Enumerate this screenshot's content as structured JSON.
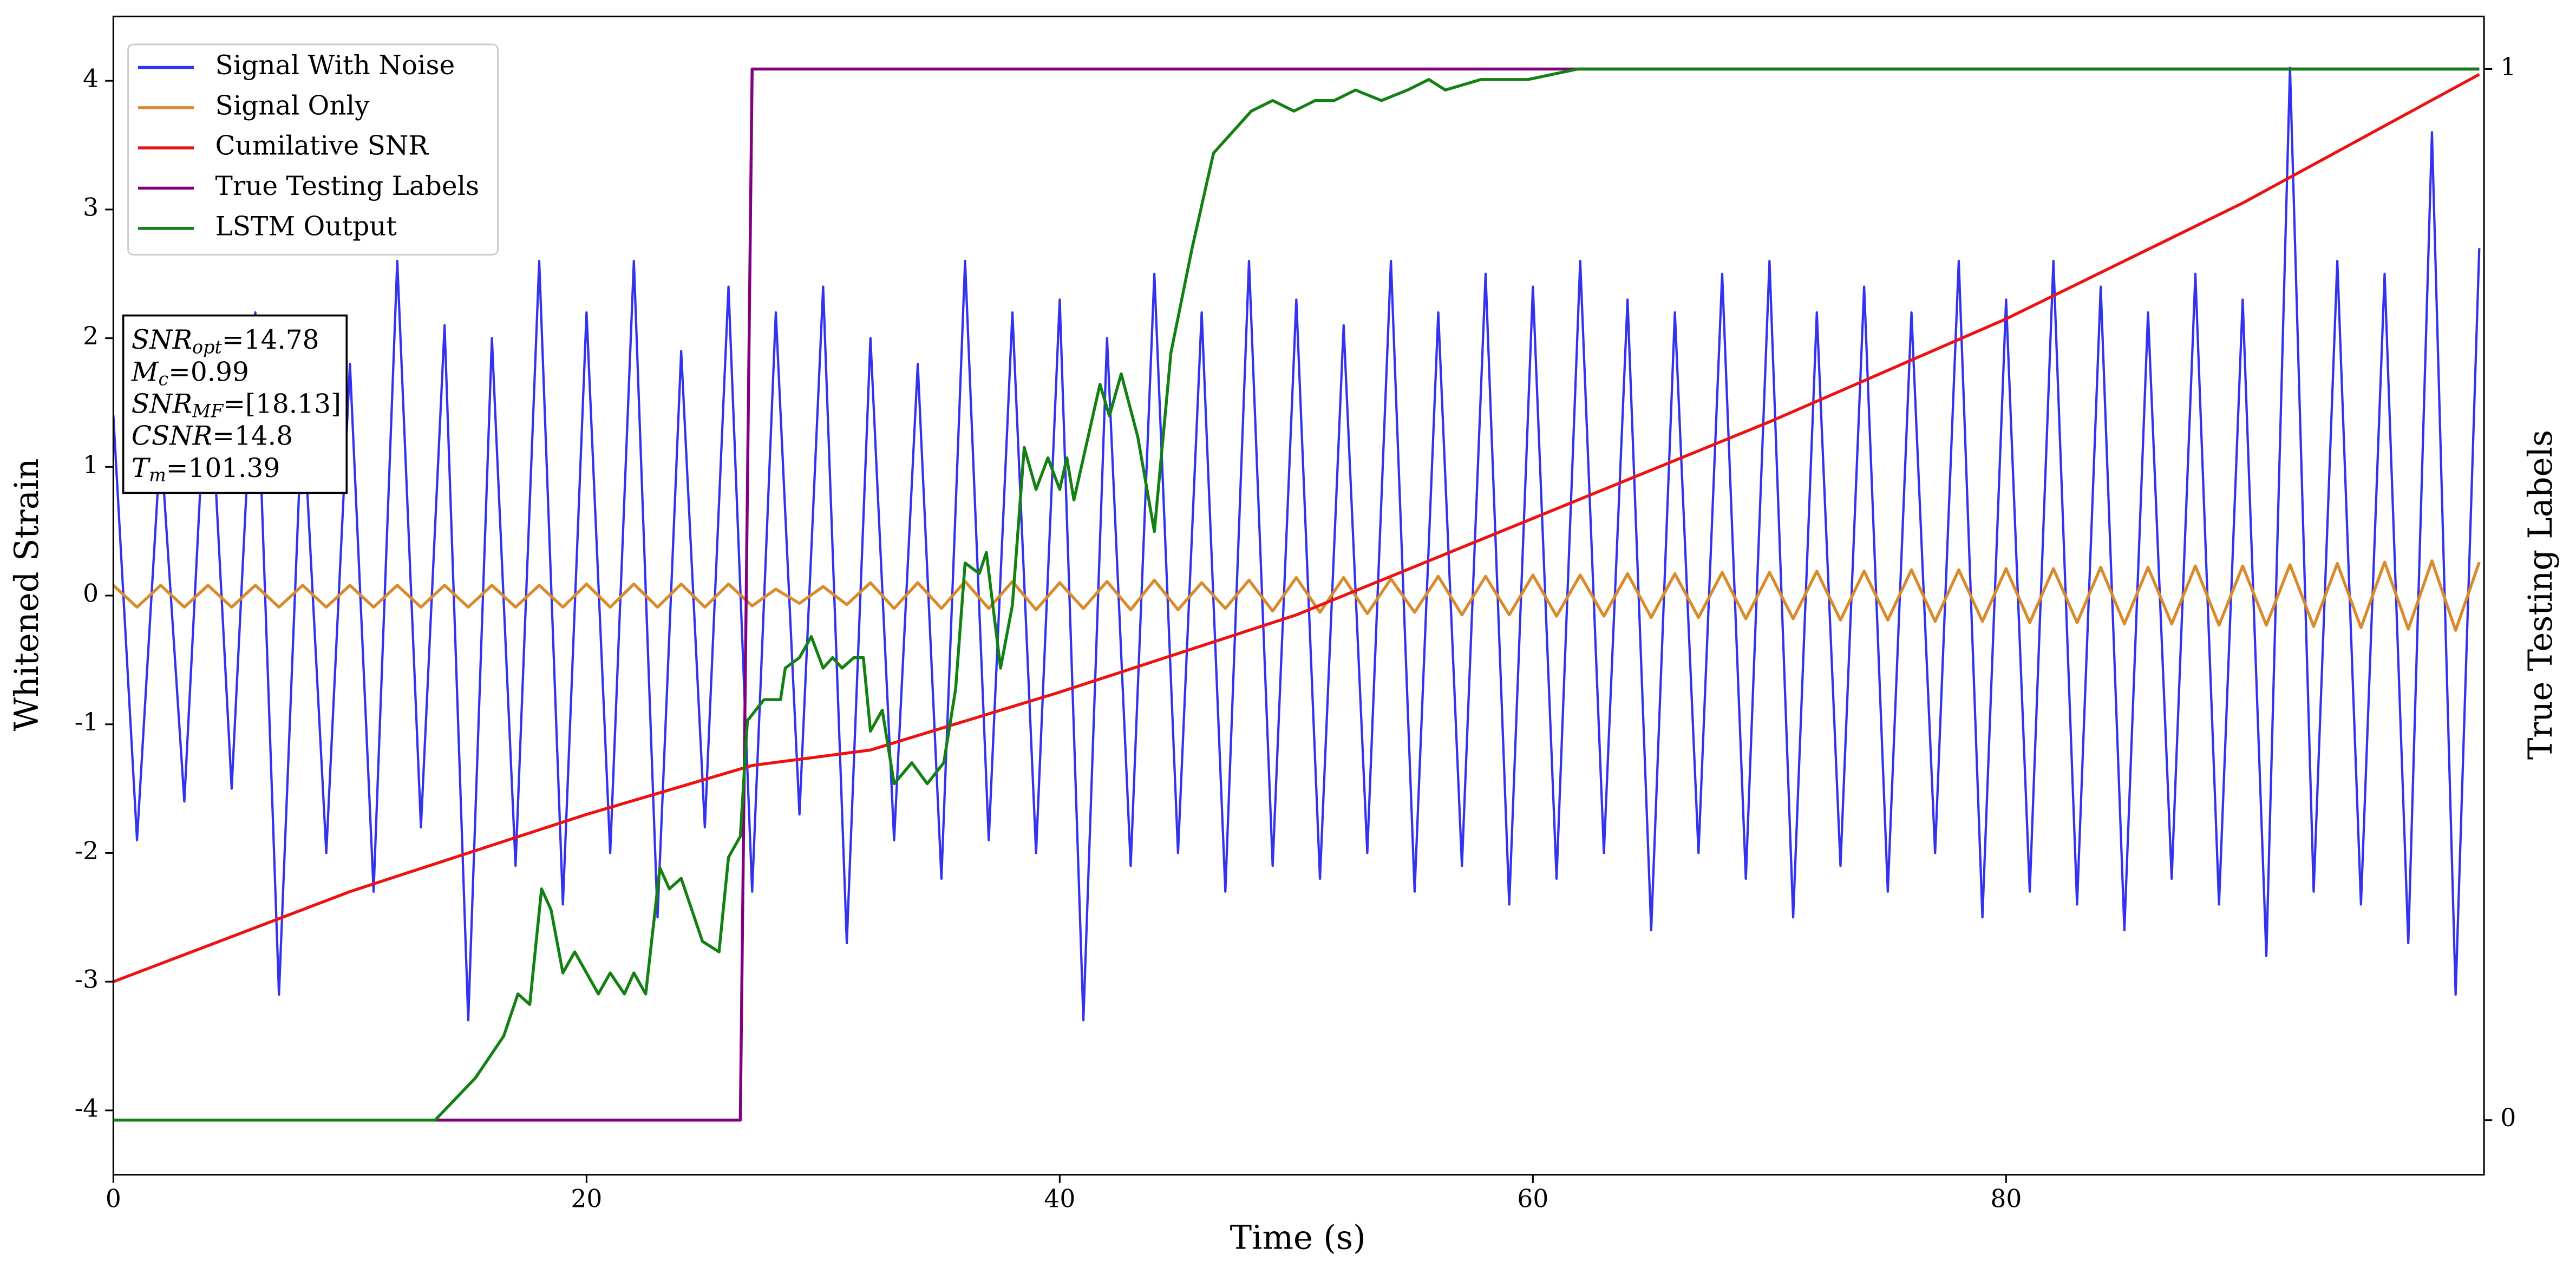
{
  "chart_data": {
    "type": "line",
    "xlabel": "Time (s)",
    "ylabel": "Whitened Strain",
    "y2label": "True Testing Labels",
    "xlim": [
      0,
      100.2
    ],
    "xticks": [
      0,
      20,
      40,
      60,
      80
    ],
    "ylim": [
      -4.5,
      4.5
    ],
    "yticks": [
      -4,
      -3,
      -2,
      -1,
      0,
      1,
      2,
      3,
      4
    ],
    "y2lim": [
      -0.052,
      1.05
    ],
    "y2ticks": [
      0,
      1
    ],
    "legend": "upper left",
    "x": [
      0,
      1,
      2,
      3,
      4,
      5,
      6,
      7,
      8,
      9,
      10,
      11,
      12,
      13,
      14,
      15,
      16,
      17,
      18,
      19,
      20,
      21,
      22,
      23,
      24,
      25,
      26,
      27,
      28,
      29,
      30,
      31,
      32,
      33,
      34,
      35,
      36,
      37,
      38,
      39,
      40,
      41,
      42,
      43,
      44,
      45,
      46,
      47,
      48,
      49,
      50,
      51,
      52,
      53,
      54,
      55,
      56,
      57,
      58,
      59,
      60,
      61,
      62,
      63,
      64,
      65,
      66,
      67,
      68,
      69,
      70,
      71,
      72,
      73,
      74,
      75,
      76,
      77,
      78,
      79,
      80,
      81,
      82,
      83,
      84,
      85,
      86,
      87,
      88,
      89,
      90,
      91,
      92,
      93,
      94,
      95,
      96,
      97,
      98,
      99,
      100
    ],
    "series": [
      {
        "name": "Signal With Noise",
        "color": "#3333ee",
        "values": [
          1.4,
          -1.9,
          1.2,
          -1.6,
          2.0,
          -1.5,
          2.2,
          -3.1,
          1.5,
          -2.0,
          1.8,
          -2.3,
          2.6,
          -1.8,
          2.1,
          -3.3,
          2.0,
          -2.1,
          2.6,
          -2.4,
          2.2,
          -2.0,
          2.6,
          -2.5,
          1.9,
          -1.8,
          2.4,
          -2.3,
          2.2,
          -1.7,
          2.4,
          -2.7,
          2.0,
          -1.9,
          1.8,
          -2.2,
          2.6,
          -1.9,
          2.2,
          -2.0,
          2.3,
          -3.3,
          2.0,
          -2.1,
          2.5,
          -2.0,
          2.2,
          -2.3,
          2.6,
          -2.1,
          2.3,
          -2.2,
          2.1,
          -2.0,
          2.6,
          -2.3,
          2.2,
          -2.1,
          2.5,
          -2.4,
          2.4,
          -2.2,
          2.6,
          -2.0,
          2.3,
          -2.6,
          2.2,
          -2.0,
          2.5,
          -2.2,
          2.6,
          -2.5,
          2.2,
          -2.1,
          2.4,
          -2.3,
          2.2,
          -2.0,
          2.6,
          -2.5,
          2.3,
          -2.3,
          2.6,
          -2.4,
          2.4,
          -2.6,
          2.2,
          -2.2,
          2.5,
          -2.4,
          2.3,
          -2.8,
          4.1,
          -2.3,
          2.6,
          -2.4,
          2.5,
          -2.7,
          3.6,
          -3.1,
          2.7
        ]
      },
      {
        "name": "Signal Only",
        "color": "#d98a2b",
        "values": [
          0.08,
          -0.09,
          0.08,
          -0.09,
          0.08,
          -0.09,
          0.08,
          -0.09,
          0.08,
          -0.09,
          0.08,
          -0.09,
          0.08,
          -0.09,
          0.08,
          -0.09,
          0.08,
          -0.09,
          0.08,
          -0.09,
          0.09,
          -0.09,
          0.09,
          -0.09,
          0.09,
          -0.09,
          0.09,
          -0.08,
          0.05,
          -0.06,
          0.07,
          -0.07,
          0.1,
          -0.1,
          0.1,
          -0.1,
          0.11,
          -0.1,
          0.11,
          -0.11,
          0.1,
          -0.1,
          0.11,
          -0.11,
          0.12,
          -0.11,
          0.1,
          -0.1,
          0.12,
          -0.12,
          0.14,
          -0.13,
          0.14,
          -0.14,
          0.13,
          -0.13,
          0.15,
          -0.15,
          0.15,
          -0.15,
          0.16,
          -0.16,
          0.16,
          -0.16,
          0.17,
          -0.17,
          0.17,
          -0.17,
          0.18,
          -0.18,
          0.18,
          -0.18,
          0.19,
          -0.19,
          0.19,
          -0.19,
          0.2,
          -0.2,
          0.2,
          -0.2,
          0.21,
          -0.21,
          0.21,
          -0.21,
          0.22,
          -0.22,
          0.22,
          -0.22,
          0.23,
          -0.23,
          0.23,
          -0.23,
          0.24,
          -0.24,
          0.25,
          -0.25,
          0.26,
          -0.26,
          0.27,
          -0.27,
          0.26
        ]
      },
      {
        "name": "Cumilative SNR",
        "color": "#ee1111",
        "x": [
          0,
          10,
          20,
          27,
          32,
          40,
          50,
          60,
          70,
          80,
          90,
          100
        ],
        "values": [
          -3,
          -2.3,
          -1.7,
          -1.32,
          -1.2,
          -0.75,
          -0.15,
          0.6,
          1.35,
          2.15,
          3.05,
          4.05
        ]
      },
      {
        "name": "True Testing Labels",
        "color": "#800080",
        "axis": "y2",
        "x": [
          0,
          26.5,
          27,
          100
        ],
        "values": [
          0,
          0,
          1,
          1
        ]
      },
      {
        "name": "LSTM Output",
        "color": "#138013",
        "axis": "y2",
        "x": [
          0,
          12.6,
          13.6,
          15.3,
          16.5,
          17.1,
          17.6,
          18.1,
          18.5,
          19,
          19.5,
          20.5,
          21,
          21.6,
          22,
          22.5,
          23.1,
          23.5,
          24,
          24.9,
          25.6,
          26,
          26.5,
          26.8,
          27.5,
          28.2,
          28.4,
          29,
          29.5,
          30,
          30.4,
          30.8,
          31.3,
          31.7,
          32,
          32.5,
          33,
          33.75,
          34.4,
          35.1,
          35.6,
          36,
          36.6,
          36.9,
          37.5,
          38,
          38.5,
          39,
          39.5,
          40,
          40.3,
          40.6,
          41.2,
          41.7,
          42.1,
          42.6,
          43.3,
          44,
          44.7,
          45.6,
          46.5,
          47.3,
          48.1,
          49,
          49.9,
          50.8,
          51.6,
          52.5,
          53.6,
          54.7,
          55.6,
          56.3,
          57.8,
          59.8,
          61.9,
          64.7,
          100
        ],
        "values": [
          0,
          0,
          0,
          0.04,
          0.08,
          0.12,
          0.11,
          0.22,
          0.2,
          0.14,
          0.16,
          0.12,
          0.14,
          0.12,
          0.14,
          0.12,
          0.24,
          0.22,
          0.23,
          0.17,
          0.16,
          0.25,
          0.27,
          0.38,
          0.4,
          0.4,
          0.43,
          0.44,
          0.46,
          0.43,
          0.44,
          0.43,
          0.44,
          0.44,
          0.37,
          0.39,
          0.32,
          0.34,
          0.32,
          0.34,
          0.41,
          0.53,
          0.52,
          0.54,
          0.43,
          0.49,
          0.64,
          0.6,
          0.63,
          0.6,
          0.63,
          0.59,
          0.65,
          0.7,
          0.67,
          0.71,
          0.65,
          0.56,
          0.73,
          0.83,
          0.92,
          0.94,
          0.96,
          0.97,
          0.96,
          0.97,
          0.97,
          0.98,
          0.97,
          0.98,
          0.99,
          0.98,
          0.99,
          0.99,
          1,
          1,
          1
        ]
      }
    ],
    "annotation": [
      {
        "symbol": "SNR",
        "subscript": "opt",
        "text": "=14.78"
      },
      {
        "symbol": "M",
        "subscript": "c",
        "text": "=0.99"
      },
      {
        "symbol": "SNR",
        "subscript": "MF",
        "text": "=[18.13]"
      },
      {
        "symbol": "CSNR",
        "text": "=14.8"
      },
      {
        "symbol": "T",
        "subscript": "m",
        "text": "=101.39"
      }
    ]
  }
}
